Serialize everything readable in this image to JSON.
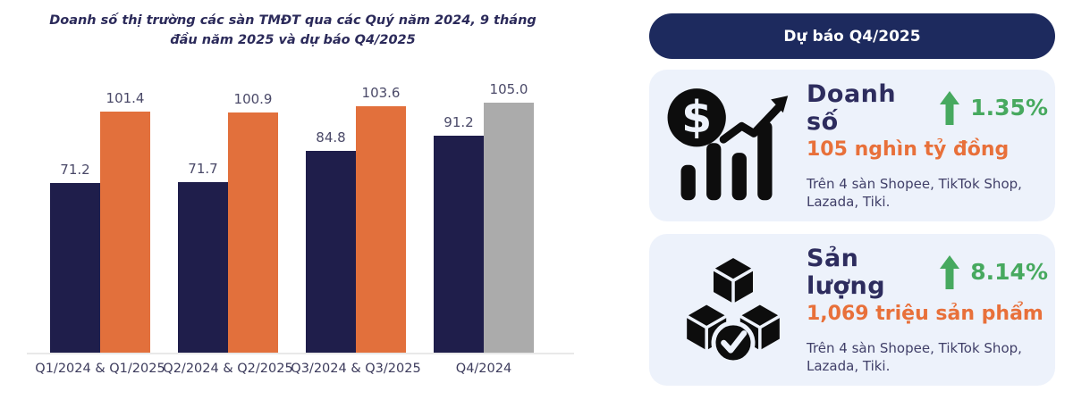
{
  "chart_data": {
    "type": "bar",
    "title": "Doanh số thị trường các sàn TMĐT qua các Quý năm 2024, 9 tháng đầu năm 2025 và dự báo Q4/2025",
    "categories": [
      "Q1/2024 & Q1/2025",
      "Q2/2024 & Q2/2025",
      "Q3/2024 & Q3/2025",
      "Q4/2024"
    ],
    "series": [
      {
        "name": "2024",
        "color": "#1f1e4b",
        "values": [
          71.2,
          71.7,
          84.8,
          91.2
        ]
      },
      {
        "name": "2025",
        "color": "#e2703c",
        "values": [
          101.4,
          100.9,
          103.6,
          105.0
        ]
      }
    ],
    "forecast": {
      "category_index": 3,
      "series_index": 1,
      "color": "#ababab"
    },
    "ylim": [
      0,
      105
    ],
    "grid": false,
    "legend": "none",
    "value_labels": true,
    "value_label_decimals": 1
  },
  "panel": {
    "header": "Dự báo Q4/2025",
    "cards": [
      {
        "icon": "dollar-trend-chart-icon",
        "title": "Doanh số",
        "change": "1.35%",
        "value": "105 nghìn tỷ đồng",
        "note": "Trên 4 sàn Shopee, TikTok Shop, Lazada, Tiki."
      },
      {
        "icon": "packages-check-icon",
        "title": "Sản lượng",
        "change": "8.14%",
        "value": "1,069 triệu sản phẩm",
        "note": "Trên 4 sàn Shopee, TikTok Shop, Lazada, Tiki."
      }
    ]
  },
  "colors": {
    "navy_bar": "#1f1e4b",
    "orange_bar": "#e2703c",
    "gray_bar": "#ababab",
    "header_bg": "#1d2a5e",
    "card_bg": "#edf2fb",
    "green": "#47a95f",
    "orange_text": "#e8703a",
    "title_text": "#2b2a5a",
    "axis_line": "#e9e9e9"
  }
}
